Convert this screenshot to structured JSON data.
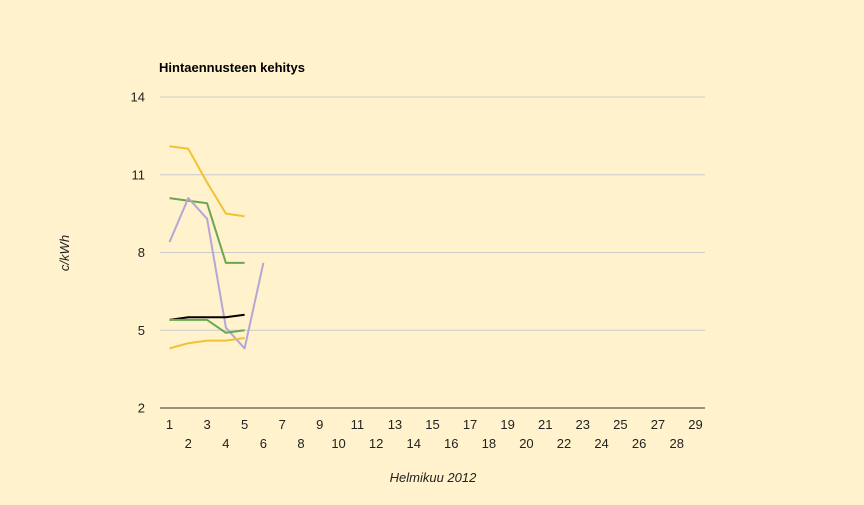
{
  "chart_data": {
    "type": "line",
    "title": "Hintaennusteen kehitys",
    "xlabel": "Helmikuu 2012",
    "ylabel": "c/kWh",
    "ylim": [
      2,
      14
    ],
    "yticks": [
      2,
      5,
      8,
      11,
      14
    ],
    "xlim": [
      1,
      29
    ],
    "x_ticks": [
      1,
      2,
      3,
      4,
      5,
      6,
      7,
      8,
      9,
      10,
      11,
      12,
      13,
      14,
      15,
      16,
      17,
      18,
      19,
      20,
      21,
      22,
      23,
      24,
      25,
      26,
      27,
      28,
      29
    ],
    "grid": true,
    "legend": "none",
    "series": [
      {
        "color": "#f1c232",
        "x": [
          1,
          2,
          3,
          4,
          5
        ],
        "values": [
          12.1,
          12.0,
          10.7,
          9.5,
          9.4
        ]
      },
      {
        "color": "#6aa84f",
        "x": [
          1,
          2,
          3,
          4,
          5
        ],
        "values": [
          10.1,
          10.0,
          9.9,
          7.6,
          7.6
        ]
      },
      {
        "color": "#b4a7d6",
        "x": [
          1,
          2,
          3,
          4,
          5,
          6
        ],
        "values": [
          8.4,
          10.1,
          9.3,
          5.1,
          4.3,
          7.6
        ]
      },
      {
        "color": "#000000",
        "x": [
          1,
          2,
          3,
          4,
          5
        ],
        "values": [
          5.4,
          5.5,
          5.5,
          5.5,
          5.6
        ]
      },
      {
        "color": "#6aa84f",
        "x": [
          1,
          2,
          3,
          4,
          5
        ],
        "values": [
          5.4,
          5.4,
          5.4,
          4.9,
          5.0
        ]
      },
      {
        "color": "#f1c232",
        "x": [
          1,
          2,
          3,
          4,
          5
        ],
        "values": [
          4.3,
          4.5,
          4.6,
          4.6,
          4.7
        ]
      }
    ]
  }
}
